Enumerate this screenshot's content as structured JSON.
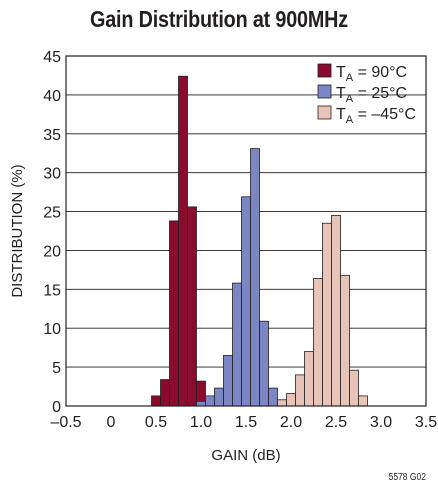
{
  "chart_data": {
    "type": "bar",
    "title": "Gain Distribution at 900MHz",
    "xlabel": "GAIN (dB)",
    "ylabel": "DISTRIBUTION (%)",
    "xlim": [
      -0.5,
      3.5
    ],
    "ylim": [
      0,
      45
    ],
    "xticks": [
      "–0.5",
      "0",
      "0.5",
      "1.0",
      "1.5",
      "2.0",
      "2.5",
      "3.0",
      "3.5"
    ],
    "yticks": [
      "0",
      "5",
      "10",
      "15",
      "20",
      "25",
      "30",
      "35",
      "40",
      "45"
    ],
    "bin_width": 0.1,
    "grid": "horizontal",
    "legend_position": "top-right",
    "series": [
      {
        "name": "T",
        "legend_sub": "A",
        "legend_rest": " = 90°C",
        "color": "#8b0b2e",
        "bins": [
          {
            "x": 0.5,
            "y": 1.3
          },
          {
            "x": 0.6,
            "y": 3.4
          },
          {
            "x": 0.7,
            "y": 23.8
          },
          {
            "x": 0.8,
            "y": 42.4
          },
          {
            "x": 0.9,
            "y": 25.6
          },
          {
            "x": 1.0,
            "y": 3.2
          },
          {
            "x": 1.1,
            "y": 0.5
          }
        ]
      },
      {
        "name": "T",
        "legend_sub": "A",
        "legend_rest": " = 25°C",
        "color": "#7d86c5",
        "bins": [
          {
            "x": 1.0,
            "y": 0.6
          },
          {
            "x": 1.1,
            "y": 1.3
          },
          {
            "x": 1.2,
            "y": 2.3
          },
          {
            "x": 1.3,
            "y": 6.5
          },
          {
            "x": 1.4,
            "y": 15.8
          },
          {
            "x": 1.5,
            "y": 26.9
          },
          {
            "x": 1.6,
            "y": 33.1
          },
          {
            "x": 1.7,
            "y": 10.9
          },
          {
            "x": 1.8,
            "y": 2.3
          }
        ]
      },
      {
        "name": "T",
        "legend_sub": "A",
        "legend_rest": " = –45°C",
        "color": "#e8c4b8",
        "bins": [
          {
            "x": 1.9,
            "y": 0.8
          },
          {
            "x": 2.0,
            "y": 1.6
          },
          {
            "x": 2.1,
            "y": 4.0
          },
          {
            "x": 2.2,
            "y": 7.0
          },
          {
            "x": 2.3,
            "y": 16.4
          },
          {
            "x": 2.4,
            "y": 23.5
          },
          {
            "x": 2.5,
            "y": 24.5
          },
          {
            "x": 2.6,
            "y": 16.8
          },
          {
            "x": 2.7,
            "y": 4.6
          },
          {
            "x": 2.8,
            "y": 1.3
          }
        ]
      }
    ]
  },
  "figure_code": "5578 G02"
}
